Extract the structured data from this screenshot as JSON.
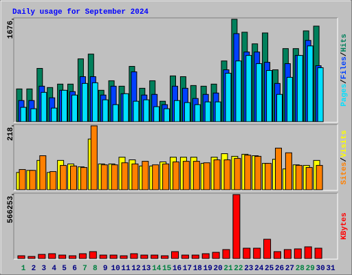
{
  "chart_data": {
    "type": "bar",
    "title": "Daily usage for September 2024",
    "title_color": "#0000ff",
    "legend_separator": "/",
    "categories": [
      1,
      2,
      3,
      4,
      5,
      6,
      7,
      8,
      9,
      10,
      11,
      12,
      13,
      14,
      15,
      16,
      17,
      18,
      19,
      20,
      21,
      22,
      23,
      24,
      25,
      26,
      27,
      28,
      29,
      30,
      31
    ],
    "weekend_categories": [
      1,
      7,
      8,
      14,
      15,
      21,
      22,
      28,
      29
    ],
    "weekend_color": "#008040",
    "weekday_color": "#000080",
    "panels": [
      {
        "ylim": [
          0,
          1676
        ],
        "yticks": [
          1676
        ],
        "series": [
          {
            "name": "Hits",
            "color": "#00805c",
            "values": [
              536,
              536,
              872,
              559,
              615,
              615,
              1028,
              1106,
              514,
              670,
              581,
              905,
              547,
              670,
              335,
              749,
              737,
              592,
              581,
              615,
              994,
              1676,
              1464,
              1274,
              1452,
              849,
              1196,
              1196,
              1486,
              1564,
              null
            ]
          },
          {
            "name": "Files",
            "color": "#0040ff",
            "values": [
              346,
              346,
              581,
              391,
              514,
              492,
              737,
              737,
              436,
              581,
              458,
              816,
              436,
              447,
              279,
              581,
              547,
              380,
              447,
              469,
              849,
              1441,
              1140,
              1140,
              972,
              626,
              950,
              1084,
              1330,
              916,
              null
            ]
          },
          {
            "name": "Pages",
            "color": "#00e0ff",
            "values": [
              235,
              212,
              480,
              223,
              514,
              436,
              626,
              637,
              358,
              279,
              458,
              335,
              358,
              246,
              212,
              346,
              313,
              279,
              324,
              324,
              793,
              994,
              1084,
              950,
              838,
              447,
              726,
              1084,
              1240,
              883,
              null
            ]
          }
        ]
      },
      {
        "ylim": [
          0,
          218
        ],
        "yticks": [
          218
        ],
        "series": [
          {
            "name": "Visits",
            "color": "#ffff00",
            "values": [
              59,
              66,
              100,
              59,
              100,
              88,
              78,
              173,
              88,
              88,
              111,
              102,
              81,
              81,
              95,
              111,
              111,
              111,
              90,
              111,
              123,
              114,
              121,
              116,
              90,
              104,
              71,
              85,
              83,
              100,
              null
            ]
          },
          {
            "name": "Sites",
            "color": "#ff8000",
            "values": [
              69,
              66,
              116,
              62,
              83,
              81,
              76,
              218,
              85,
              85,
              92,
              88,
              97,
              85,
              88,
              95,
              97,
              97,
              92,
              102,
              102,
              107,
              118,
              114,
              90,
              142,
              126,
              83,
              76,
              83,
              null
            ]
          }
        ]
      },
      {
        "ylim": [
          0,
          566253
        ],
        "yticks": [
          566253
        ],
        "series": [
          {
            "name": "KBytes",
            "color": "#ff0000",
            "values": [
              24355,
              18266,
              36532,
              42621,
              30444,
              24355,
              42621,
              60887,
              30444,
              30444,
              24355,
              42621,
              30444,
              30444,
              24355,
              60887,
              30444,
              30444,
              42621,
              54799,
              79154,
              566253,
              91331,
              91331,
              170485,
              60887,
              79154,
              85243,
              103509,
              91331,
              null
            ]
          }
        ]
      }
    ]
  }
}
